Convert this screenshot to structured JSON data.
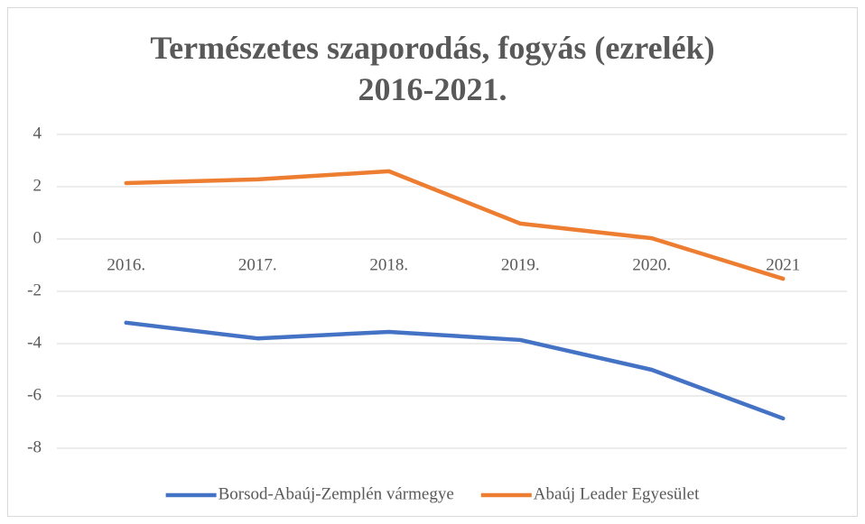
{
  "chart_data": {
    "type": "line",
    "title": "Természetes szaporodás, fogyás (ezrelék) 2016-2021.",
    "categories": [
      "2016.",
      "2017.",
      "2018.",
      "2019.",
      "2020.",
      "2021"
    ],
    "series": [
      {
        "name": "Borsod-Abaúj-Zemplén vármegye",
        "color": "#4472c4",
        "values": [
          -3.2,
          -3.8,
          -3.55,
          -3.86,
          -5.0,
          -6.86
        ]
      },
      {
        "name": "Abaúj Leader Egyesület",
        "color": "#ed7d31",
        "values": [
          2.14,
          2.28,
          2.59,
          0.59,
          0.03,
          -1.52
        ]
      }
    ],
    "ylim": [
      -8,
      4
    ],
    "yticks": [
      -8,
      -6,
      -4,
      -2,
      0,
      2,
      4
    ],
    "grid": true,
    "legend": "bottom"
  }
}
